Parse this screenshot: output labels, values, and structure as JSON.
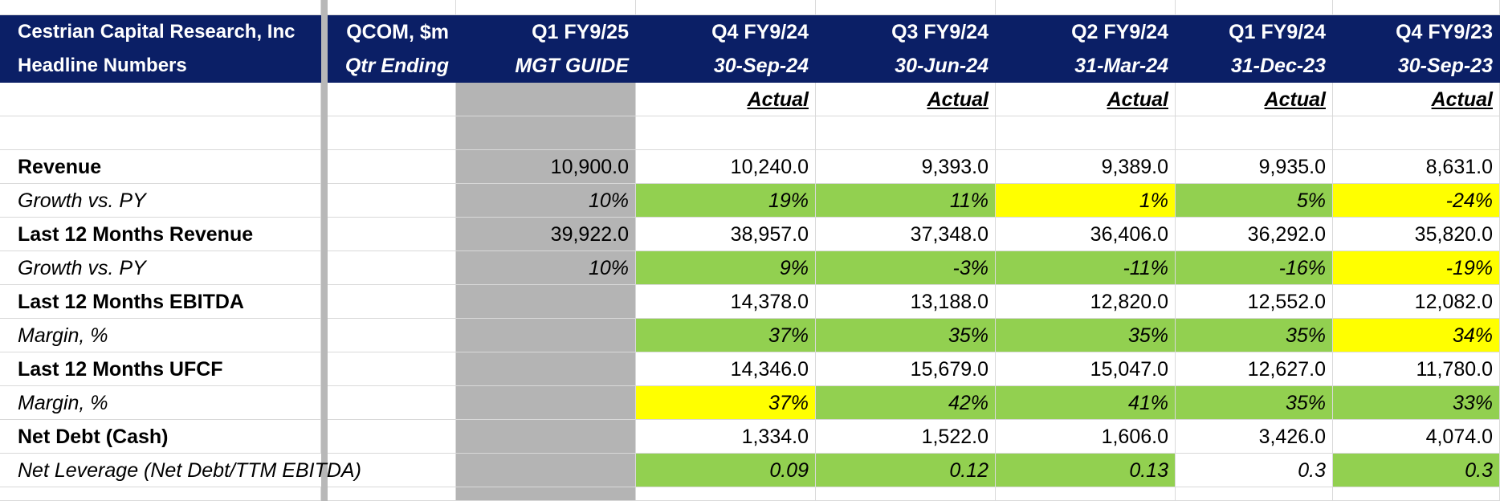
{
  "header": {
    "row1": [
      "Cestrian Capital Research, Inc",
      "QCOM, $m",
      "Q1 FY9/25",
      "Q4 FY9/24",
      "Q3 FY9/24",
      "Q2 FY9/24",
      "Q1 FY9/24",
      "Q4 FY9/23"
    ],
    "row2": [
      "Headline Numbers",
      "Qtr Ending",
      "MGT GUIDE",
      "30-Sep-24",
      "30-Jun-24",
      "31-Mar-24",
      "31-Dec-23",
      "30-Sep-23"
    ]
  },
  "actual_row": [
    "",
    "Actual",
    "Actual",
    "Actual",
    "Actual",
    "Actual"
  ],
  "rows": [
    {
      "label": "Revenue",
      "values": [
        "10,900.0",
        "10,240.0",
        "9,393.0",
        "9,389.0",
        "9,935.0",
        "8,631.0"
      ]
    },
    {
      "label": "Growth vs. PY",
      "values": [
        "10%",
        "19%",
        "11%",
        "1%",
        "5%",
        "-24%"
      ]
    },
    {
      "label": "Last 12 Months Revenue",
      "values": [
        "39,922.0",
        "38,957.0",
        "37,348.0",
        "36,406.0",
        "36,292.0",
        "35,820.0"
      ]
    },
    {
      "label": "Growth vs. PY",
      "values": [
        "10%",
        "9%",
        "-3%",
        "-11%",
        "-16%",
        "-19%"
      ]
    },
    {
      "label": "Last 12 Months EBITDA",
      "values": [
        "",
        "14,378.0",
        "13,188.0",
        "12,820.0",
        "12,552.0",
        "12,082.0"
      ]
    },
    {
      "label": "Margin, %",
      "values": [
        "",
        "37%",
        "35%",
        "35%",
        "35%",
        "34%"
      ]
    },
    {
      "label": "Last 12 Months UFCF",
      "values": [
        "",
        "14,346.0",
        "15,679.0",
        "15,047.0",
        "12,627.0",
        "11,780.0"
      ]
    },
    {
      "label": "Margin, %",
      "values": [
        "",
        "37%",
        "42%",
        "41%",
        "35%",
        "33%"
      ]
    },
    {
      "label": "Net Debt (Cash)",
      "values": [
        "",
        "1,334.0",
        "1,522.0",
        "1,606.0",
        "3,426.0",
        "4,074.0"
      ]
    },
    {
      "label": "Net Leverage (Net Debt/TTM EBITDA)",
      "values": [
        "",
        "0.09",
        "0.12",
        "0.13",
        "0.3",
        "0.3"
      ]
    }
  ],
  "colors": {
    "header_bg": "#0b1f66",
    "green": "#92d050",
    "yellow": "#ffff00",
    "guide_gray": "#b4b4b4"
  }
}
